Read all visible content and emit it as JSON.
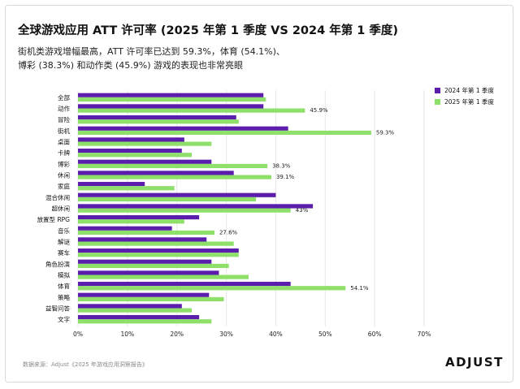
{
  "header": {
    "title": "全球游戏应用 ATT 许可率 (2025 年第 1 季度 VS 2024 年第 1 季度)",
    "subtitle_line1": "街机类游戏增幅最高，ATT 许可率已达到 59.3%，体育 (54.1%)、",
    "subtitle_line2": "博彩 (38.3%) 和动作类 (45.9%) 游戏的表现也非常亮眼"
  },
  "footer": {
    "source": "数据来源：Adjust《2025 年游戏应用洞察报告》",
    "logo": "ADJUST"
  },
  "colors": {
    "series_2024": "#5b1dab",
    "series_2025": "#8ee06a",
    "grid": "#e6e6e6",
    "text": "#111111"
  },
  "chart_data": {
    "type": "bar",
    "orientation": "horizontal",
    "categories": [
      "全部",
      "动作",
      "冒险",
      "街机",
      "桌面",
      "卡牌",
      "博彩",
      "休闲",
      "家庭",
      "混合休闲",
      "超休闲",
      "放置型 RPG",
      "音乐",
      "解谜",
      "赛车",
      "角色扮演",
      "模拟",
      "体育",
      "策略",
      "益智问答",
      "文字"
    ],
    "series": [
      {
        "name": "2024 年第 1 季度",
        "values": [
          37.5,
          37.5,
          32,
          42.5,
          21.5,
          21,
          27,
          31.5,
          13.5,
          40,
          47.5,
          24.5,
          19,
          26,
          32.5,
          27,
          28.5,
          43,
          26.5,
          21,
          24.5
        ]
      },
      {
        "name": "2025 年第 1 季度",
        "values": [
          38,
          45.9,
          32.5,
          59.3,
          27,
          23,
          38.3,
          39.1,
          19.5,
          36,
          43,
          21.5,
          27.6,
          31.5,
          32.5,
          30.5,
          34.5,
          54.1,
          29.5,
          23,
          27
        ]
      }
    ],
    "data_labels": [
      {
        "category": "动作",
        "series": 1,
        "text": "45.9%"
      },
      {
        "category": "街机",
        "series": 1,
        "text": "59.3%"
      },
      {
        "category": "博彩",
        "series": 1,
        "text": "38.3%"
      },
      {
        "category": "休闲",
        "series": 1,
        "text": "39.1%"
      },
      {
        "category": "超休闲",
        "series": 1,
        "text": "43%"
      },
      {
        "category": "音乐",
        "series": 1,
        "text": "27.6%"
      },
      {
        "category": "体育",
        "series": 1,
        "text": "54.1%"
      }
    ],
    "xlim": [
      0,
      70
    ],
    "xticks": [
      "0%",
      "10%",
      "20%",
      "30%",
      "40%",
      "50%",
      "60%",
      "70%"
    ],
    "grid": true,
    "legend_position": "top-right"
  }
}
